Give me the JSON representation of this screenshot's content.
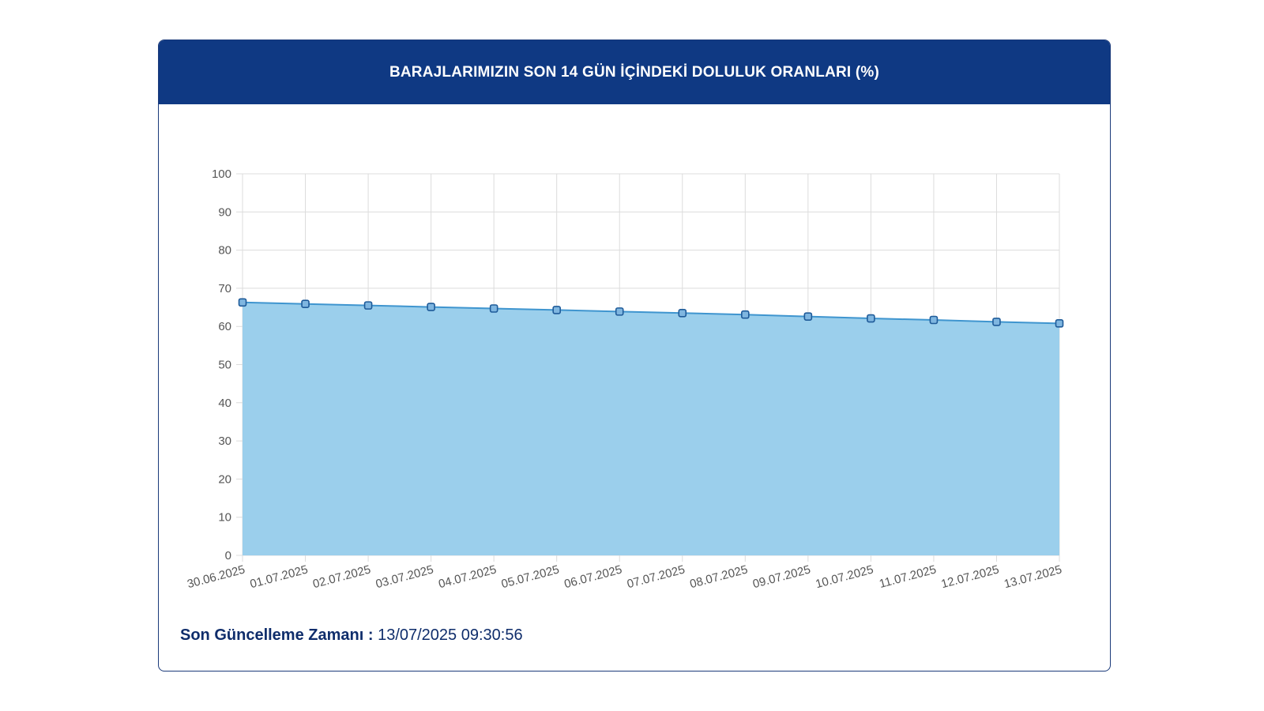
{
  "header": {
    "title": "BARAJLARIMIZIN SON 14 GÜN İÇİNDEKİ DOLULUK ORANLARI (%)"
  },
  "footer": {
    "label": "Son Güncelleme Zamanı :",
    "value": "13/07/2025 09:30:56"
  },
  "colors": {
    "header_bg": "#0f3983",
    "area_fill": "#9bcfec",
    "line": "#3f95cf",
    "point_fill": "#7fb6e0",
    "point_stroke": "#1f5b99"
  },
  "chart_data": {
    "type": "area",
    "title": "BARAJLARIMIZIN SON 14 GÜN İÇİNDEKİ DOLULUK ORANLARI (%)",
    "xlabel": "",
    "ylabel": "",
    "categories": [
      "30.06.2025",
      "01.07.2025",
      "02.07.2025",
      "03.07.2025",
      "04.07.2025",
      "05.07.2025",
      "06.07.2025",
      "07.07.2025",
      "08.07.2025",
      "09.07.2025",
      "10.07.2025",
      "11.07.2025",
      "12.07.2025",
      "13.07.2025"
    ],
    "series": [
      {
        "values": [
          66.3,
          65.9,
          65.5,
          65.1,
          64.7,
          64.3,
          63.9,
          63.5,
          63.1,
          62.6,
          62.1,
          61.7,
          61.2,
          60.8
        ]
      }
    ],
    "ylim": [
      0,
      100
    ],
    "yticks": [
      0,
      10,
      20,
      30,
      40,
      50,
      60,
      70,
      80,
      90,
      100
    ],
    "grid": true,
    "legend": "none"
  }
}
